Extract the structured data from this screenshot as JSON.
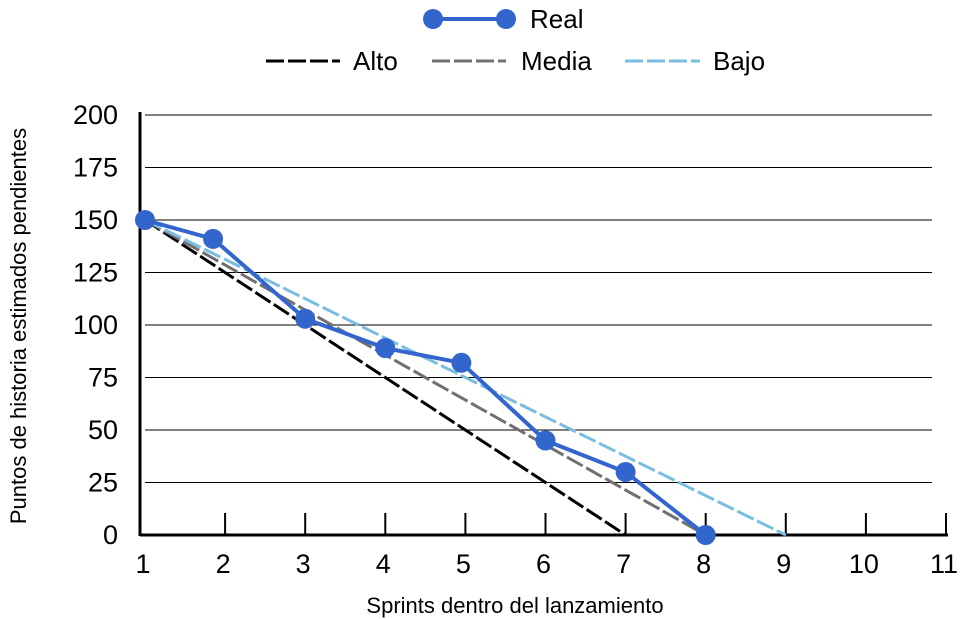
{
  "chart_data": {
    "type": "line",
    "xlabel": "Sprints dentro del lanzamiento",
    "ylabel": "Puntos de historia estimados pendientes",
    "xlim": [
      1,
      11
    ],
    "ylim": [
      0,
      200
    ],
    "x_ticks": [
      "1",
      "2",
      "3",
      "4",
      "5",
      "6",
      "7",
      "8",
      "9",
      "10",
      "11"
    ],
    "y_ticks": [
      "0",
      "25",
      "50",
      "75",
      "100",
      "125",
      "150",
      "175",
      "200"
    ],
    "grid": "horizontal",
    "legend_position": "top",
    "series": [
      {
        "name": "Real",
        "style": "solid-markers",
        "color": "#3366cc",
        "points": [
          [
            1,
            150
          ],
          [
            1.85,
            141
          ],
          [
            3,
            103
          ],
          [
            4,
            89
          ],
          [
            4.95,
            82
          ],
          [
            6,
            45
          ],
          [
            7,
            30
          ],
          [
            8,
            0
          ]
        ]
      },
      {
        "name": "Alto",
        "style": "dashed",
        "color": "#000000",
        "points": [
          [
            1,
            150
          ],
          [
            7,
            0
          ]
        ]
      },
      {
        "name": "Media",
        "style": "dashed",
        "color": "#707070",
        "points": [
          [
            1,
            150
          ],
          [
            8,
            0
          ]
        ]
      },
      {
        "name": "Bajo",
        "style": "dashed",
        "color": "#79bde0",
        "points": [
          [
            1,
            150
          ],
          [
            9,
            0
          ]
        ]
      }
    ]
  }
}
